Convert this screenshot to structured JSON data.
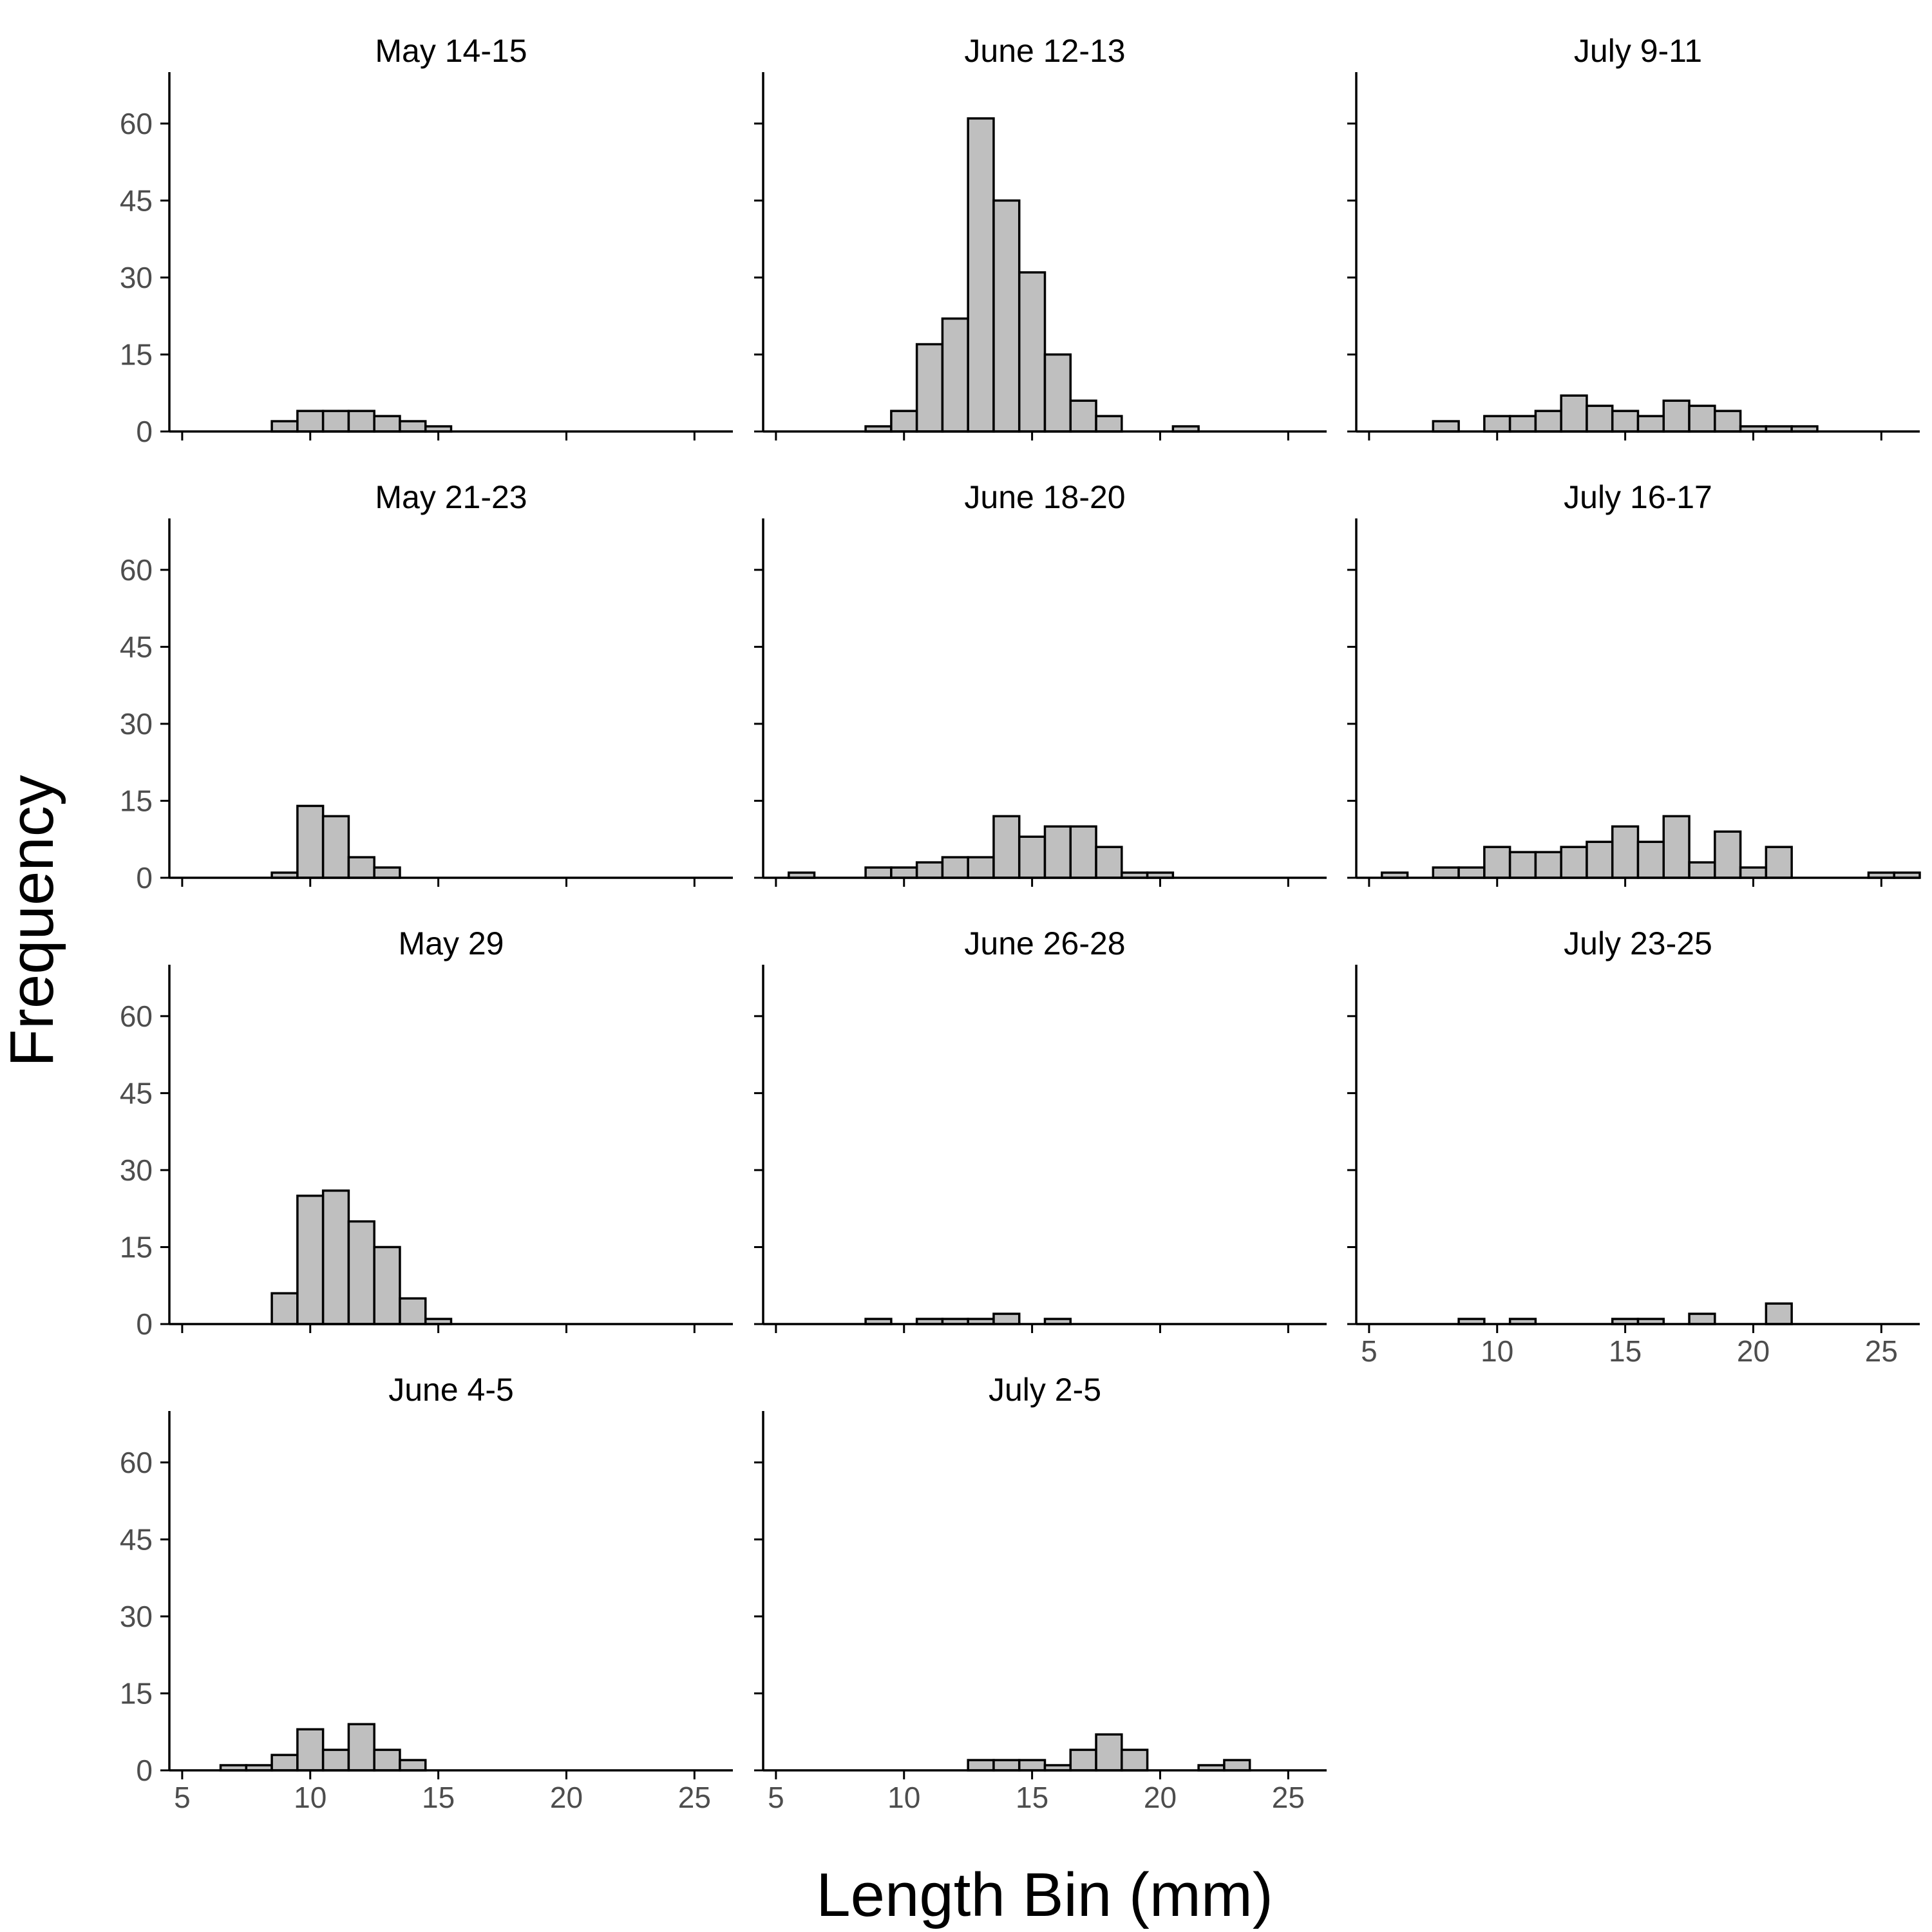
{
  "chart_data": {
    "type": "bar",
    "subtype": "faceted-histogram",
    "xlabel": "Length Bin (mm)",
    "ylabel": "Frequency",
    "xlim": [
      4.5,
      26.5
    ],
    "ylim": [
      0,
      65
    ],
    "x_ticks": [
      5,
      10,
      15,
      20,
      25
    ],
    "y_ticks": [
      0,
      15,
      30,
      45,
      60
    ],
    "bar_color": "#bfbfbf",
    "outline_color": "#000000",
    "grid": false,
    "legend": "none",
    "facets": [
      {
        "title": "May 14-15",
        "bins": [
          {
            "x": 9,
            "count": 2
          },
          {
            "x": 10,
            "count": 4
          },
          {
            "x": 11,
            "count": 4
          },
          {
            "x": 12,
            "count": 4
          },
          {
            "x": 13,
            "count": 3
          },
          {
            "x": 14,
            "count": 2
          },
          {
            "x": 15,
            "count": 1
          }
        ]
      },
      {
        "title": "June 12-13",
        "bins": [
          {
            "x": 9,
            "count": 1
          },
          {
            "x": 10,
            "count": 4
          },
          {
            "x": 11,
            "count": 17
          },
          {
            "x": 12,
            "count": 22
          },
          {
            "x": 13,
            "count": 61
          },
          {
            "x": 14,
            "count": 45
          },
          {
            "x": 15,
            "count": 31
          },
          {
            "x": 16,
            "count": 15
          },
          {
            "x": 17,
            "count": 6
          },
          {
            "x": 18,
            "count": 3
          },
          {
            "x": 21,
            "count": 1
          }
        ]
      },
      {
        "title": "July 9-11",
        "bins": [
          {
            "x": 8,
            "count": 2
          },
          {
            "x": 10,
            "count": 3
          },
          {
            "x": 11,
            "count": 3
          },
          {
            "x": 12,
            "count": 4
          },
          {
            "x": 13,
            "count": 7
          },
          {
            "x": 14,
            "count": 5
          },
          {
            "x": 15,
            "count": 4
          },
          {
            "x": 16,
            "count": 3
          },
          {
            "x": 17,
            "count": 6
          },
          {
            "x": 18,
            "count": 5
          },
          {
            "x": 19,
            "count": 4
          },
          {
            "x": 20,
            "count": 1
          },
          {
            "x": 21,
            "count": 1
          },
          {
            "x": 22,
            "count": 1
          }
        ]
      },
      {
        "title": "May 21-23",
        "bins": [
          {
            "x": 9,
            "count": 1
          },
          {
            "x": 10,
            "count": 14
          },
          {
            "x": 11,
            "count": 12
          },
          {
            "x": 12,
            "count": 4
          },
          {
            "x": 13,
            "count": 2
          }
        ]
      },
      {
        "title": "June 18-20",
        "bins": [
          {
            "x": 6,
            "count": 1
          },
          {
            "x": 9,
            "count": 2
          },
          {
            "x": 10,
            "count": 2
          },
          {
            "x": 11,
            "count": 3
          },
          {
            "x": 12,
            "count": 4
          },
          {
            "x": 13,
            "count": 4
          },
          {
            "x": 14,
            "count": 12
          },
          {
            "x": 15,
            "count": 8
          },
          {
            "x": 16,
            "count": 10
          },
          {
            "x": 17,
            "count": 10
          },
          {
            "x": 18,
            "count": 6
          },
          {
            "x": 19,
            "count": 1
          },
          {
            "x": 20,
            "count": 1
          }
        ]
      },
      {
        "title": "July 16-17",
        "bins": [
          {
            "x": 6,
            "count": 1
          },
          {
            "x": 8,
            "count": 2
          },
          {
            "x": 9,
            "count": 2
          },
          {
            "x": 10,
            "count": 6
          },
          {
            "x": 11,
            "count": 5
          },
          {
            "x": 12,
            "count": 5
          },
          {
            "x": 13,
            "count": 6
          },
          {
            "x": 14,
            "count": 7
          },
          {
            "x": 15,
            "count": 10
          },
          {
            "x": 16,
            "count": 7
          },
          {
            "x": 17,
            "count": 12
          },
          {
            "x": 18,
            "count": 3
          },
          {
            "x": 19,
            "count": 9
          },
          {
            "x": 20,
            "count": 2
          },
          {
            "x": 21,
            "count": 6
          },
          {
            "x": 25,
            "count": 1
          },
          {
            "x": 26,
            "count": 1
          }
        ]
      },
      {
        "title": "May 29",
        "bins": [
          {
            "x": 9,
            "count": 6
          },
          {
            "x": 10,
            "count": 25
          },
          {
            "x": 11,
            "count": 26
          },
          {
            "x": 12,
            "count": 20
          },
          {
            "x": 13,
            "count": 15
          },
          {
            "x": 14,
            "count": 5
          },
          {
            "x": 15,
            "count": 1
          }
        ]
      },
      {
        "title": "June 26-28",
        "bins": [
          {
            "x": 9,
            "count": 1
          },
          {
            "x": 11,
            "count": 1
          },
          {
            "x": 12,
            "count": 1
          },
          {
            "x": 13,
            "count": 1
          },
          {
            "x": 14,
            "count": 2
          },
          {
            "x": 16,
            "count": 1
          }
        ]
      },
      {
        "title": "July 23-25",
        "bins": [
          {
            "x": 9,
            "count": 1
          },
          {
            "x": 11,
            "count": 1
          },
          {
            "x": 15,
            "count": 1
          },
          {
            "x": 16,
            "count": 1
          },
          {
            "x": 18,
            "count": 2
          },
          {
            "x": 21,
            "count": 4
          }
        ]
      },
      {
        "title": "June 4-5",
        "bins": [
          {
            "x": 7,
            "count": 1
          },
          {
            "x": 8,
            "count": 1
          },
          {
            "x": 9,
            "count": 3
          },
          {
            "x": 10,
            "count": 8
          },
          {
            "x": 11,
            "count": 4
          },
          {
            "x": 12,
            "count": 9
          },
          {
            "x": 13,
            "count": 4
          },
          {
            "x": 14,
            "count": 2
          }
        ]
      },
      {
        "title": "July 2-5",
        "bins": [
          {
            "x": 13,
            "count": 2
          },
          {
            "x": 14,
            "count": 2
          },
          {
            "x": 15,
            "count": 2
          },
          {
            "x": 16,
            "count": 1
          },
          {
            "x": 17,
            "count": 4
          },
          {
            "x": 18,
            "count": 7
          },
          {
            "x": 19,
            "count": 4
          },
          {
            "x": 22,
            "count": 1
          },
          {
            "x": 23,
            "count": 2
          }
        ]
      }
    ]
  }
}
